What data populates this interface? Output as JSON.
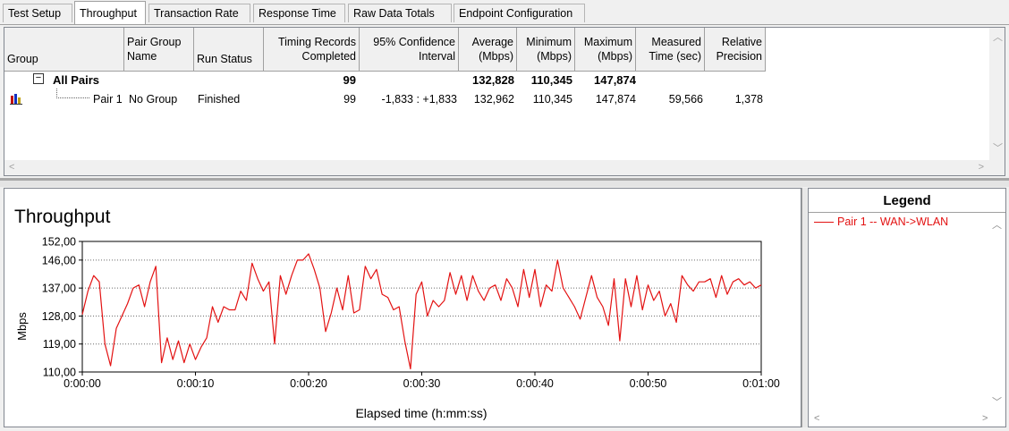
{
  "tabs": [
    "Test Setup",
    "Throughput",
    "Transaction Rate",
    "Response Time",
    "Raw Data Totals",
    "Endpoint Configuration"
  ],
  "active_tab": "Throughput",
  "table": {
    "headers": {
      "group": "Group",
      "pair_group_name": [
        "Pair Group",
        "Name"
      ],
      "run_status": "Run Status",
      "timing_records": [
        "Timing Records",
        "Completed"
      ],
      "confidence": [
        "95% Confidence",
        "Interval"
      ],
      "average": [
        "Average",
        "(Mbps)"
      ],
      "minimum": [
        "Minimum",
        "(Mbps)"
      ],
      "maximum": [
        "Maximum",
        "(Mbps)"
      ],
      "measured": [
        "Measured",
        "Time (sec)"
      ],
      "relative": [
        "Relative",
        "Precision"
      ]
    },
    "all_pairs": {
      "expander": "⊟",
      "label": "All Pairs",
      "timing_records": "99",
      "average": "132,828",
      "minimum": "110,345",
      "maximum": "147,874"
    },
    "pair1": {
      "label": "Pair 1",
      "group_name": "No Group",
      "run_status": "Finished",
      "timing_records": "99",
      "confidence": "-1,833 : +1,833",
      "average": "132,962",
      "minimum": "110,345",
      "maximum": "147,874",
      "measured": "59,566",
      "relative": "1,378"
    }
  },
  "legend": {
    "title": "Legend",
    "items": [
      "Pair 1 -- WAN->WLAN"
    ],
    "color": "#e31212"
  },
  "chart_data": {
    "type": "line",
    "title": "Throughput",
    "xlabel": "Elapsed time (h:mm:ss)",
    "ylabel": "Mbps",
    "ylim": [
      110,
      152
    ],
    "yticks": [
      "152,00",
      "146,00",
      "137,00",
      "128,00",
      "119,00",
      "110,00"
    ],
    "ytick_values": [
      152,
      146,
      137,
      128,
      119,
      110
    ],
    "xlim": [
      0,
      60
    ],
    "xticks": [
      "0:00:00",
      "0:00:10",
      "0:00:20",
      "0:00:30",
      "0:00:40",
      "0:00:50",
      "0:01:00"
    ],
    "xtick_values": [
      0,
      10,
      20,
      30,
      40,
      50,
      60
    ],
    "grid": true,
    "series": [
      {
        "name": "Pair 1 -- WAN->WLAN",
        "color": "#e31212",
        "x": [
          0,
          0.5,
          1,
          1.5,
          2,
          2.5,
          3,
          3.5,
          4,
          4.5,
          5,
          5.5,
          6,
          6.5,
          7,
          7.5,
          8,
          8.5,
          9,
          9.5,
          10,
          10.5,
          11,
          11.5,
          12,
          12.5,
          13,
          13.5,
          14,
          14.5,
          15,
          15.5,
          16,
          16.5,
          17,
          17.5,
          18,
          18.5,
          19,
          19.5,
          20,
          20.5,
          21,
          21.5,
          22,
          22.5,
          23,
          23.5,
          24,
          24.5,
          25,
          25.5,
          26,
          26.5,
          27,
          27.5,
          28,
          28.5,
          29,
          29.5,
          30,
          30.5,
          31,
          31.5,
          32,
          32.5,
          33,
          33.5,
          34,
          34.5,
          35,
          35.5,
          36,
          36.5,
          37,
          37.5,
          38,
          38.5,
          39,
          39.5,
          40,
          40.5,
          41,
          41.5,
          42,
          42.5,
          43,
          43.5,
          44,
          44.5,
          45,
          45.5,
          46,
          46.5,
          47,
          47.5,
          48,
          48.5,
          49,
          49.5,
          50,
          50.5,
          51,
          51.5,
          52,
          52.5,
          53,
          53.5,
          54,
          54.5,
          55,
          55.5,
          56,
          56.5,
          57,
          57.5,
          58,
          58.5,
          59,
          59.5,
          60
        ],
        "y": [
          128.5,
          136,
          141,
          139,
          119,
          112,
          124,
          128,
          132,
          137,
          138,
          131,
          139,
          144,
          113,
          121,
          114,
          120,
          113,
          119,
          114,
          118,
          121,
          131,
          126,
          131,
          130,
          130,
          136,
          133,
          145,
          140,
          136,
          139,
          119,
          141,
          135,
          141,
          146,
          146,
          148,
          143,
          137,
          123,
          129,
          137,
          130,
          141,
          129,
          130,
          144,
          140,
          143,
          135,
          134,
          130,
          131,
          120,
          111,
          135,
          139,
          128,
          133,
          131,
          133,
          142,
          135,
          141,
          133,
          141,
          136,
          133,
          137,
          138,
          133,
          140,
          137,
          131,
          143,
          134,
          143,
          131,
          138,
          136,
          146,
          137,
          134,
          131,
          127,
          134,
          141,
          134,
          131,
          125,
          140,
          120,
          140,
          131,
          141,
          130,
          138,
          133,
          136,
          128,
          132,
          126,
          141,
          138,
          136,
          139,
          139,
          140,
          134,
          141,
          135,
          139,
          140,
          138,
          139,
          137,
          138
        ]
      }
    ]
  }
}
